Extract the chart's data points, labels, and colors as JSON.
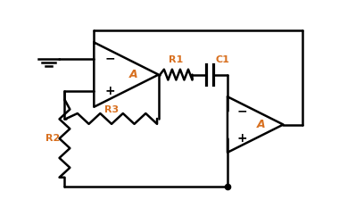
{
  "bg_color": "#ffffff",
  "line_color": "#000000",
  "label_color": "#cc6600",
  "component_color": "#d87020",
  "fig_width": 4.08,
  "fig_height": 2.33,
  "dpi": 100,
  "R1_label": "R1",
  "R2_label": "R2",
  "R3_label": "R3",
  "C1_label": "C1",
  "oa1_label": "A",
  "oa2_label": "A",
  "xlim": [
    0,
    10
  ],
  "ylim": [
    0,
    7
  ],
  "lw": 1.8
}
